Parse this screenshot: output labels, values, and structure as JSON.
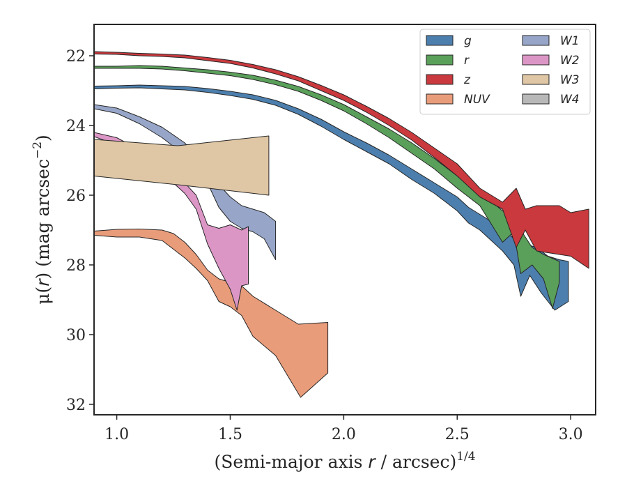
{
  "chart_data": {
    "type": "area",
    "title": "",
    "xlabel": "(Semi-major axis r / arcsec)",
    "xlabel_prefix": "(Semi-major axis ",
    "xlabel_var": "r",
    "xlabel_suffix": " / arcsec)",
    "xlabel_exp": "1/4",
    "ylabel": "μ(r) (mag arcsec⁻²)",
    "ylabel_prefix": "μ(",
    "ylabel_var": "r",
    "ylabel_suffix": ") (mag arcsec",
    "ylabel_exp": "−2",
    "ylabel_close": ")",
    "xlim": [
      0.9,
      3.11
    ],
    "ylim": [
      32.3,
      21.1
    ],
    "y_inverted": true,
    "xticks": [
      1.0,
      1.5,
      2.0,
      2.5,
      3.0
    ],
    "xtick_labels": [
      "1.0",
      "1.5",
      "2.0",
      "2.5",
      "3.0"
    ],
    "yticks": [
      22,
      24,
      26,
      28,
      30,
      32
    ],
    "ytick_labels": [
      "22",
      "24",
      "26",
      "28",
      "30",
      "32"
    ],
    "grid": false,
    "legend": {
      "position": "top-right",
      "columns": 2
    },
    "series": [
      {
        "name": "g",
        "color": "#4c7fae",
        "upper": [
          [
            0.9,
            22.87
          ],
          [
            1.0,
            22.86
          ],
          [
            1.1,
            22.84
          ],
          [
            1.2,
            22.86
          ],
          [
            1.3,
            22.88
          ],
          [
            1.4,
            22.94
          ],
          [
            1.5,
            23.02
          ],
          [
            1.6,
            23.12
          ],
          [
            1.7,
            23.28
          ],
          [
            1.8,
            23.52
          ],
          [
            1.9,
            23.82
          ],
          [
            2.0,
            24.18
          ],
          [
            2.1,
            24.5
          ],
          [
            2.2,
            24.85
          ],
          [
            2.3,
            25.25
          ],
          [
            2.4,
            25.65
          ],
          [
            2.5,
            26.05
          ],
          [
            2.55,
            26.35
          ],
          [
            2.6,
            26.55
          ],
          [
            2.65,
            26.75
          ],
          [
            2.7,
            26.95
          ],
          [
            2.75,
            27.25
          ],
          [
            2.78,
            27.45
          ],
          [
            2.8,
            27.4
          ],
          [
            2.85,
            27.5
          ],
          [
            2.9,
            27.75
          ],
          [
            2.95,
            27.85
          ],
          [
            2.99,
            27.9
          ]
        ],
        "lower": [
          [
            0.9,
            22.95
          ],
          [
            1.0,
            22.93
          ],
          [
            1.1,
            22.92
          ],
          [
            1.2,
            22.95
          ],
          [
            1.3,
            22.98
          ],
          [
            1.4,
            23.05
          ],
          [
            1.5,
            23.14
          ],
          [
            1.6,
            23.25
          ],
          [
            1.7,
            23.42
          ],
          [
            1.8,
            23.68
          ],
          [
            1.9,
            24.02
          ],
          [
            2.0,
            24.4
          ],
          [
            2.1,
            24.75
          ],
          [
            2.2,
            25.1
          ],
          [
            2.3,
            25.55
          ],
          [
            2.4,
            25.95
          ],
          [
            2.5,
            26.45
          ],
          [
            2.55,
            26.8
          ],
          [
            2.6,
            27.0
          ],
          [
            2.65,
            27.3
          ],
          [
            2.7,
            27.6
          ],
          [
            2.75,
            28.0
          ],
          [
            2.78,
            28.9
          ],
          [
            2.82,
            28.3
          ],
          [
            2.87,
            28.8
          ],
          [
            2.93,
            29.3
          ],
          [
            2.99,
            29.05
          ]
        ]
      },
      {
        "name": "r",
        "color": "#5a9f5a",
        "upper": [
          [
            0.9,
            22.3
          ],
          [
            1.0,
            22.3
          ],
          [
            1.1,
            22.28
          ],
          [
            1.2,
            22.3
          ],
          [
            1.3,
            22.35
          ],
          [
            1.4,
            22.4
          ],
          [
            1.5,
            22.47
          ],
          [
            1.6,
            22.56
          ],
          [
            1.7,
            22.7
          ],
          [
            1.8,
            22.88
          ],
          [
            1.9,
            23.12
          ],
          [
            2.0,
            23.4
          ],
          [
            2.1,
            23.75
          ],
          [
            2.2,
            24.1
          ],
          [
            2.3,
            24.5
          ],
          [
            2.4,
            24.95
          ],
          [
            2.5,
            25.45
          ],
          [
            2.6,
            25.9
          ],
          [
            2.7,
            26.45
          ],
          [
            2.75,
            26.55
          ],
          [
            2.78,
            27.0
          ],
          [
            2.83,
            27.5
          ],
          [
            2.88,
            27.7
          ],
          [
            2.95,
            27.9
          ]
        ],
        "lower": [
          [
            0.9,
            22.36
          ],
          [
            1.0,
            22.36
          ],
          [
            1.1,
            22.36
          ],
          [
            1.2,
            22.38
          ],
          [
            1.3,
            22.43
          ],
          [
            1.4,
            22.5
          ],
          [
            1.5,
            22.57
          ],
          [
            1.6,
            22.68
          ],
          [
            1.7,
            22.83
          ],
          [
            1.8,
            23.02
          ],
          [
            1.9,
            23.28
          ],
          [
            2.0,
            23.58
          ],
          [
            2.1,
            23.95
          ],
          [
            2.2,
            24.35
          ],
          [
            2.3,
            24.8
          ],
          [
            2.4,
            25.25
          ],
          [
            2.5,
            25.8
          ],
          [
            2.6,
            26.3
          ],
          [
            2.7,
            27.35
          ],
          [
            2.75,
            27.05
          ],
          [
            2.78,
            28.25
          ],
          [
            2.83,
            28.0
          ],
          [
            2.88,
            28.4
          ],
          [
            2.92,
            29.25
          ],
          [
            2.95,
            28.5
          ]
        ]
      },
      {
        "name": "z",
        "color": "#c9393d",
        "upper": [
          [
            0.9,
            21.88
          ],
          [
            1.0,
            21.9
          ],
          [
            1.1,
            21.93
          ],
          [
            1.2,
            21.95
          ],
          [
            1.3,
            21.98
          ],
          [
            1.4,
            22.05
          ],
          [
            1.5,
            22.13
          ],
          [
            1.6,
            22.25
          ],
          [
            1.7,
            22.4
          ],
          [
            1.8,
            22.6
          ],
          [
            1.9,
            22.85
          ],
          [
            2.0,
            23.12
          ],
          [
            2.1,
            23.45
          ],
          [
            2.2,
            23.8
          ],
          [
            2.3,
            24.2
          ],
          [
            2.4,
            24.65
          ],
          [
            2.5,
            25.1
          ],
          [
            2.6,
            25.8
          ],
          [
            2.7,
            26.2
          ],
          [
            2.76,
            25.8
          ],
          [
            2.8,
            26.4
          ],
          [
            2.85,
            26.3
          ],
          [
            2.95,
            26.3
          ],
          [
            3.0,
            26.5
          ],
          [
            3.08,
            26.4
          ]
        ],
        "lower": [
          [
            0.9,
            21.95
          ],
          [
            1.0,
            21.96
          ],
          [
            1.1,
            22.0
          ],
          [
            1.2,
            22.02
          ],
          [
            1.3,
            22.06
          ],
          [
            1.4,
            22.14
          ],
          [
            1.5,
            22.22
          ],
          [
            1.6,
            22.35
          ],
          [
            1.7,
            22.52
          ],
          [
            1.8,
            22.72
          ],
          [
            1.9,
            23.0
          ],
          [
            2.0,
            23.28
          ],
          [
            2.1,
            23.62
          ],
          [
            2.2,
            24.0
          ],
          [
            2.3,
            24.42
          ],
          [
            2.4,
            24.92
          ],
          [
            2.5,
            25.45
          ],
          [
            2.6,
            26.05
          ],
          [
            2.7,
            26.4
          ],
          [
            2.76,
            27.5
          ],
          [
            2.8,
            27.0
          ],
          [
            2.85,
            27.6
          ],
          [
            2.95,
            27.7
          ],
          [
            3.0,
            27.75
          ],
          [
            3.08,
            28.1
          ]
        ]
      },
      {
        "name": "NUV",
        "color": "#e99c7a",
        "upper": [
          [
            0.9,
            27.03
          ],
          [
            1.0,
            26.98
          ],
          [
            1.1,
            26.97
          ],
          [
            1.2,
            27.0
          ],
          [
            1.25,
            27.1
          ],
          [
            1.3,
            27.35
          ],
          [
            1.35,
            27.7
          ],
          [
            1.4,
            28.15
          ],
          [
            1.45,
            28.4
          ],
          [
            1.5,
            28.5
          ],
          [
            1.55,
            28.6
          ],
          [
            1.6,
            28.9
          ],
          [
            1.7,
            29.3
          ],
          [
            1.8,
            29.7
          ],
          [
            1.93,
            29.65
          ]
        ],
        "lower": [
          [
            0.9,
            27.15
          ],
          [
            1.0,
            27.2
          ],
          [
            1.1,
            27.2
          ],
          [
            1.2,
            27.3
          ],
          [
            1.25,
            27.55
          ],
          [
            1.3,
            27.8
          ],
          [
            1.35,
            28.1
          ],
          [
            1.4,
            28.45
          ],
          [
            1.45,
            29.05
          ],
          [
            1.5,
            29.2
          ],
          [
            1.55,
            29.45
          ],
          [
            1.6,
            30.05
          ],
          [
            1.7,
            30.6
          ],
          [
            1.81,
            31.8
          ],
          [
            1.93,
            31.1
          ]
        ]
      },
      {
        "name": "W1",
        "color": "#97a6c8",
        "upper": [
          [
            0.9,
            23.4
          ],
          [
            1.0,
            23.5
          ],
          [
            1.1,
            23.75
          ],
          [
            1.2,
            24.05
          ],
          [
            1.3,
            24.5
          ],
          [
            1.4,
            25.25
          ],
          [
            1.45,
            25.7
          ],
          [
            1.5,
            26.05
          ],
          [
            1.55,
            26.3
          ],
          [
            1.6,
            26.4
          ],
          [
            1.65,
            26.5
          ],
          [
            1.7,
            26.75
          ]
        ],
        "lower": [
          [
            0.9,
            23.52
          ],
          [
            1.0,
            23.65
          ],
          [
            1.1,
            23.95
          ],
          [
            1.2,
            24.35
          ],
          [
            1.3,
            24.85
          ],
          [
            1.4,
            25.65
          ],
          [
            1.45,
            26.35
          ],
          [
            1.5,
            26.75
          ],
          [
            1.55,
            26.95
          ],
          [
            1.6,
            27.05
          ],
          [
            1.65,
            27.25
          ],
          [
            1.7,
            27.85
          ]
        ]
      },
      {
        "name": "W2",
        "color": "#dc96c6",
        "upper": [
          [
            0.9,
            24.2
          ],
          [
            1.0,
            24.35
          ],
          [
            1.1,
            24.7
          ],
          [
            1.2,
            25.1
          ],
          [
            1.3,
            25.65
          ],
          [
            1.35,
            26.0
          ],
          [
            1.4,
            26.85
          ],
          [
            1.45,
            26.95
          ],
          [
            1.5,
            26.85
          ],
          [
            1.55,
            27.0
          ],
          [
            1.58,
            26.9
          ]
        ],
        "lower": [
          [
            0.9,
            24.32
          ],
          [
            1.0,
            24.55
          ],
          [
            1.1,
            24.9
          ],
          [
            1.2,
            25.35
          ],
          [
            1.3,
            25.95
          ],
          [
            1.35,
            26.4
          ],
          [
            1.4,
            27.4
          ],
          [
            1.45,
            28.1
          ],
          [
            1.5,
            28.7
          ],
          [
            1.53,
            29.3
          ],
          [
            1.55,
            28.6
          ],
          [
            1.58,
            28.55
          ]
        ]
      },
      {
        "name": "W3",
        "color": "#dfc6a4",
        "upper": [
          [
            0.9,
            24.4
          ],
          [
            1.27,
            24.58
          ],
          [
            1.67,
            24.3
          ]
        ],
        "lower": [
          [
            0.9,
            25.45
          ],
          [
            1.27,
            25.7
          ],
          [
            1.67,
            26.0
          ]
        ]
      },
      {
        "name": "W4",
        "color": "#b8b8b8",
        "upper": [],
        "lower": []
      }
    ]
  }
}
